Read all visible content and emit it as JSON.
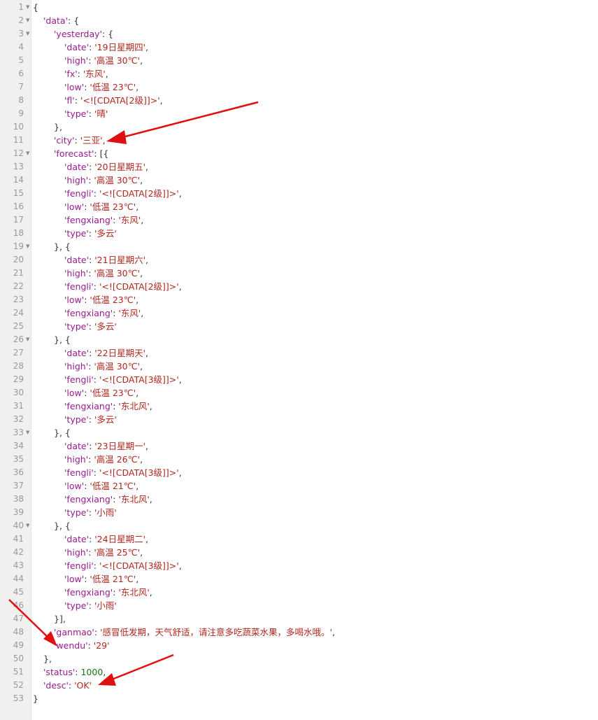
{
  "colors": {
    "key": "#9a1a8e",
    "string": "#b0261d",
    "number": "#127a12",
    "punct": "#333333",
    "gutter_bg": "#f0f0f0",
    "line_number": "#999999",
    "arrow": "#e01010"
  },
  "lines": [
    {
      "n": "1",
      "fold": true,
      "indent": 0,
      "parts": [
        {
          "t": "p",
          "v": "{"
        }
      ]
    },
    {
      "n": "2",
      "fold": true,
      "indent": 1,
      "parts": [
        {
          "t": "k",
          "v": "'data'"
        },
        {
          "t": "p",
          "v": ": {"
        }
      ]
    },
    {
      "n": "3",
      "fold": true,
      "indent": 2,
      "parts": [
        {
          "t": "k",
          "v": "'yesterday'"
        },
        {
          "t": "p",
          "v": ": {"
        }
      ]
    },
    {
      "n": "4",
      "fold": false,
      "indent": 3,
      "parts": [
        {
          "t": "k",
          "v": "'date'"
        },
        {
          "t": "p",
          "v": ": "
        },
        {
          "t": "s",
          "v": "'19日星期四'"
        },
        {
          "t": "p",
          "v": ","
        }
      ]
    },
    {
      "n": "5",
      "fold": false,
      "indent": 3,
      "parts": [
        {
          "t": "k",
          "v": "'high'"
        },
        {
          "t": "p",
          "v": ": "
        },
        {
          "t": "s",
          "v": "'高温 30℃'"
        },
        {
          "t": "p",
          "v": ","
        }
      ]
    },
    {
      "n": "6",
      "fold": false,
      "indent": 3,
      "parts": [
        {
          "t": "k",
          "v": "'fx'"
        },
        {
          "t": "p",
          "v": ": "
        },
        {
          "t": "s",
          "v": "'东风'"
        },
        {
          "t": "p",
          "v": ","
        }
      ]
    },
    {
      "n": "7",
      "fold": false,
      "indent": 3,
      "parts": [
        {
          "t": "k",
          "v": "'low'"
        },
        {
          "t": "p",
          "v": ": "
        },
        {
          "t": "s",
          "v": "'低温 23℃'"
        },
        {
          "t": "p",
          "v": ","
        }
      ]
    },
    {
      "n": "8",
      "fold": false,
      "indent": 3,
      "parts": [
        {
          "t": "k",
          "v": "'fl'"
        },
        {
          "t": "p",
          "v": ": "
        },
        {
          "t": "s",
          "v": "'<![CDATA[2级]]>'"
        },
        {
          "t": "p",
          "v": ","
        }
      ]
    },
    {
      "n": "9",
      "fold": false,
      "indent": 3,
      "parts": [
        {
          "t": "k",
          "v": "'type'"
        },
        {
          "t": "p",
          "v": ": "
        },
        {
          "t": "s",
          "v": "'晴'"
        }
      ]
    },
    {
      "n": "10",
      "fold": false,
      "indent": 2,
      "parts": [
        {
          "t": "p",
          "v": "},"
        }
      ]
    },
    {
      "n": "11",
      "fold": false,
      "indent": 2,
      "parts": [
        {
          "t": "k",
          "v": "'city'"
        },
        {
          "t": "p",
          "v": ": "
        },
        {
          "t": "s",
          "v": "'三亚'"
        },
        {
          "t": "p",
          "v": ","
        }
      ]
    },
    {
      "n": "12",
      "fold": true,
      "indent": 2,
      "parts": [
        {
          "t": "k",
          "v": "'forecast'"
        },
        {
          "t": "p",
          "v": ": [{"
        }
      ]
    },
    {
      "n": "13",
      "fold": false,
      "indent": 3,
      "parts": [
        {
          "t": "k",
          "v": "'date'"
        },
        {
          "t": "p",
          "v": ": "
        },
        {
          "t": "s",
          "v": "'20日星期五'"
        },
        {
          "t": "p",
          "v": ","
        }
      ]
    },
    {
      "n": "14",
      "fold": false,
      "indent": 3,
      "parts": [
        {
          "t": "k",
          "v": "'high'"
        },
        {
          "t": "p",
          "v": ": "
        },
        {
          "t": "s",
          "v": "'高温 30℃'"
        },
        {
          "t": "p",
          "v": ","
        }
      ]
    },
    {
      "n": "15",
      "fold": false,
      "indent": 3,
      "parts": [
        {
          "t": "k",
          "v": "'fengli'"
        },
        {
          "t": "p",
          "v": ": "
        },
        {
          "t": "s",
          "v": "'<![CDATA[2级]]>'"
        },
        {
          "t": "p",
          "v": ","
        }
      ]
    },
    {
      "n": "16",
      "fold": false,
      "indent": 3,
      "parts": [
        {
          "t": "k",
          "v": "'low'"
        },
        {
          "t": "p",
          "v": ": "
        },
        {
          "t": "s",
          "v": "'低温 23℃'"
        },
        {
          "t": "p",
          "v": ","
        }
      ]
    },
    {
      "n": "17",
      "fold": false,
      "indent": 3,
      "parts": [
        {
          "t": "k",
          "v": "'fengxiang'"
        },
        {
          "t": "p",
          "v": ": "
        },
        {
          "t": "s",
          "v": "'东风'"
        },
        {
          "t": "p",
          "v": ","
        }
      ]
    },
    {
      "n": "18",
      "fold": false,
      "indent": 3,
      "parts": [
        {
          "t": "k",
          "v": "'type'"
        },
        {
          "t": "p",
          "v": ": "
        },
        {
          "t": "s",
          "v": "'多云'"
        }
      ]
    },
    {
      "n": "19",
      "fold": true,
      "indent": 2,
      "parts": [
        {
          "t": "p",
          "v": "}, {"
        }
      ]
    },
    {
      "n": "20",
      "fold": false,
      "indent": 3,
      "parts": [
        {
          "t": "k",
          "v": "'date'"
        },
        {
          "t": "p",
          "v": ": "
        },
        {
          "t": "s",
          "v": "'21日星期六'"
        },
        {
          "t": "p",
          "v": ","
        }
      ]
    },
    {
      "n": "21",
      "fold": false,
      "indent": 3,
      "parts": [
        {
          "t": "k",
          "v": "'high'"
        },
        {
          "t": "p",
          "v": ": "
        },
        {
          "t": "s",
          "v": "'高温 30℃'"
        },
        {
          "t": "p",
          "v": ","
        }
      ]
    },
    {
      "n": "22",
      "fold": false,
      "indent": 3,
      "parts": [
        {
          "t": "k",
          "v": "'fengli'"
        },
        {
          "t": "p",
          "v": ": "
        },
        {
          "t": "s",
          "v": "'<![CDATA[2级]]>'"
        },
        {
          "t": "p",
          "v": ","
        }
      ]
    },
    {
      "n": "23",
      "fold": false,
      "indent": 3,
      "parts": [
        {
          "t": "k",
          "v": "'low'"
        },
        {
          "t": "p",
          "v": ": "
        },
        {
          "t": "s",
          "v": "'低温 23℃'"
        },
        {
          "t": "p",
          "v": ","
        }
      ]
    },
    {
      "n": "24",
      "fold": false,
      "indent": 3,
      "parts": [
        {
          "t": "k",
          "v": "'fengxiang'"
        },
        {
          "t": "p",
          "v": ": "
        },
        {
          "t": "s",
          "v": "'东风'"
        },
        {
          "t": "p",
          "v": ","
        }
      ]
    },
    {
      "n": "25",
      "fold": false,
      "indent": 3,
      "parts": [
        {
          "t": "k",
          "v": "'type'"
        },
        {
          "t": "p",
          "v": ": "
        },
        {
          "t": "s",
          "v": "'多云'"
        }
      ]
    },
    {
      "n": "26",
      "fold": true,
      "indent": 2,
      "parts": [
        {
          "t": "p",
          "v": "}, {"
        }
      ]
    },
    {
      "n": "27",
      "fold": false,
      "indent": 3,
      "parts": [
        {
          "t": "k",
          "v": "'date'"
        },
        {
          "t": "p",
          "v": ": "
        },
        {
          "t": "s",
          "v": "'22日星期天'"
        },
        {
          "t": "p",
          "v": ","
        }
      ]
    },
    {
      "n": "28",
      "fold": false,
      "indent": 3,
      "parts": [
        {
          "t": "k",
          "v": "'high'"
        },
        {
          "t": "p",
          "v": ": "
        },
        {
          "t": "s",
          "v": "'高温 30℃'"
        },
        {
          "t": "p",
          "v": ","
        }
      ]
    },
    {
      "n": "29",
      "fold": false,
      "indent": 3,
      "parts": [
        {
          "t": "k",
          "v": "'fengli'"
        },
        {
          "t": "p",
          "v": ": "
        },
        {
          "t": "s",
          "v": "'<![CDATA[3级]]>'"
        },
        {
          "t": "p",
          "v": ","
        }
      ]
    },
    {
      "n": "30",
      "fold": false,
      "indent": 3,
      "parts": [
        {
          "t": "k",
          "v": "'low'"
        },
        {
          "t": "p",
          "v": ": "
        },
        {
          "t": "s",
          "v": "'低温 23℃'"
        },
        {
          "t": "p",
          "v": ","
        }
      ]
    },
    {
      "n": "31",
      "fold": false,
      "indent": 3,
      "parts": [
        {
          "t": "k",
          "v": "'fengxiang'"
        },
        {
          "t": "p",
          "v": ": "
        },
        {
          "t": "s",
          "v": "'东北风'"
        },
        {
          "t": "p",
          "v": ","
        }
      ]
    },
    {
      "n": "32",
      "fold": false,
      "indent": 3,
      "parts": [
        {
          "t": "k",
          "v": "'type'"
        },
        {
          "t": "p",
          "v": ": "
        },
        {
          "t": "s",
          "v": "'多云'"
        }
      ]
    },
    {
      "n": "33",
      "fold": true,
      "indent": 2,
      "parts": [
        {
          "t": "p",
          "v": "}, {"
        }
      ]
    },
    {
      "n": "34",
      "fold": false,
      "indent": 3,
      "parts": [
        {
          "t": "k",
          "v": "'date'"
        },
        {
          "t": "p",
          "v": ": "
        },
        {
          "t": "s",
          "v": "'23日星期一'"
        },
        {
          "t": "p",
          "v": ","
        }
      ]
    },
    {
      "n": "35",
      "fold": false,
      "indent": 3,
      "parts": [
        {
          "t": "k",
          "v": "'high'"
        },
        {
          "t": "p",
          "v": ": "
        },
        {
          "t": "s",
          "v": "'高温 26℃'"
        },
        {
          "t": "p",
          "v": ","
        }
      ]
    },
    {
      "n": "36",
      "fold": false,
      "indent": 3,
      "parts": [
        {
          "t": "k",
          "v": "'fengli'"
        },
        {
          "t": "p",
          "v": ": "
        },
        {
          "t": "s",
          "v": "'<![CDATA[3级]]>'"
        },
        {
          "t": "p",
          "v": ","
        }
      ]
    },
    {
      "n": "37",
      "fold": false,
      "indent": 3,
      "parts": [
        {
          "t": "k",
          "v": "'low'"
        },
        {
          "t": "p",
          "v": ": "
        },
        {
          "t": "s",
          "v": "'低温 21℃'"
        },
        {
          "t": "p",
          "v": ","
        }
      ]
    },
    {
      "n": "38",
      "fold": false,
      "indent": 3,
      "parts": [
        {
          "t": "k",
          "v": "'fengxiang'"
        },
        {
          "t": "p",
          "v": ": "
        },
        {
          "t": "s",
          "v": "'东北风'"
        },
        {
          "t": "p",
          "v": ","
        }
      ]
    },
    {
      "n": "39",
      "fold": false,
      "indent": 3,
      "parts": [
        {
          "t": "k",
          "v": "'type'"
        },
        {
          "t": "p",
          "v": ": "
        },
        {
          "t": "s",
          "v": "'小雨'"
        }
      ]
    },
    {
      "n": "40",
      "fold": true,
      "indent": 2,
      "parts": [
        {
          "t": "p",
          "v": "}, {"
        }
      ]
    },
    {
      "n": "41",
      "fold": false,
      "indent": 3,
      "parts": [
        {
          "t": "k",
          "v": "'date'"
        },
        {
          "t": "p",
          "v": ": "
        },
        {
          "t": "s",
          "v": "'24日星期二'"
        },
        {
          "t": "p",
          "v": ","
        }
      ]
    },
    {
      "n": "42",
      "fold": false,
      "indent": 3,
      "parts": [
        {
          "t": "k",
          "v": "'high'"
        },
        {
          "t": "p",
          "v": ": "
        },
        {
          "t": "s",
          "v": "'高温 25℃'"
        },
        {
          "t": "p",
          "v": ","
        }
      ]
    },
    {
      "n": "43",
      "fold": false,
      "indent": 3,
      "parts": [
        {
          "t": "k",
          "v": "'fengli'"
        },
        {
          "t": "p",
          "v": ": "
        },
        {
          "t": "s",
          "v": "'<![CDATA[3级]]>'"
        },
        {
          "t": "p",
          "v": ","
        }
      ]
    },
    {
      "n": "44",
      "fold": false,
      "indent": 3,
      "parts": [
        {
          "t": "k",
          "v": "'low'"
        },
        {
          "t": "p",
          "v": ": "
        },
        {
          "t": "s",
          "v": "'低温 21℃'"
        },
        {
          "t": "p",
          "v": ","
        }
      ]
    },
    {
      "n": "45",
      "fold": false,
      "indent": 3,
      "parts": [
        {
          "t": "k",
          "v": "'fengxiang'"
        },
        {
          "t": "p",
          "v": ": "
        },
        {
          "t": "s",
          "v": "'东北风'"
        },
        {
          "t": "p",
          "v": ","
        }
      ]
    },
    {
      "n": "46",
      "fold": false,
      "indent": 3,
      "parts": [
        {
          "t": "k",
          "v": "'type'"
        },
        {
          "t": "p",
          "v": ": "
        },
        {
          "t": "s",
          "v": "'小雨'"
        }
      ]
    },
    {
      "n": "47",
      "fold": false,
      "indent": 2,
      "parts": [
        {
          "t": "p",
          "v": "}],"
        }
      ]
    },
    {
      "n": "48",
      "fold": false,
      "indent": 2,
      "parts": [
        {
          "t": "k",
          "v": "'ganmao'"
        },
        {
          "t": "p",
          "v": ": "
        },
        {
          "t": "s",
          "v": "'感冒低发期，天气舒适，请注意多吃蔬菜水果，多喝水哦。'"
        },
        {
          "t": "p",
          "v": ","
        }
      ]
    },
    {
      "n": "49",
      "fold": false,
      "indent": 2,
      "parts": [
        {
          "t": "k",
          "v": "'wendu'"
        },
        {
          "t": "p",
          "v": ": "
        },
        {
          "t": "s",
          "v": "'29'"
        }
      ]
    },
    {
      "n": "50",
      "fold": false,
      "indent": 1,
      "parts": [
        {
          "t": "p",
          "v": "},"
        }
      ]
    },
    {
      "n": "51",
      "fold": false,
      "indent": 1,
      "parts": [
        {
          "t": "k",
          "v": "'status'"
        },
        {
          "t": "p",
          "v": ": "
        },
        {
          "t": "n",
          "v": "1000"
        },
        {
          "t": "p",
          "v": ","
        }
      ]
    },
    {
      "n": "52",
      "fold": false,
      "indent": 1,
      "parts": [
        {
          "t": "k",
          "v": "'desc'"
        },
        {
          "t": "p",
          "v": ": "
        },
        {
          "t": "s",
          "v": "'OK'"
        }
      ]
    },
    {
      "n": "53",
      "fold": false,
      "indent": 0,
      "parts": [
        {
          "t": "p",
          "v": "}"
        }
      ]
    }
  ]
}
